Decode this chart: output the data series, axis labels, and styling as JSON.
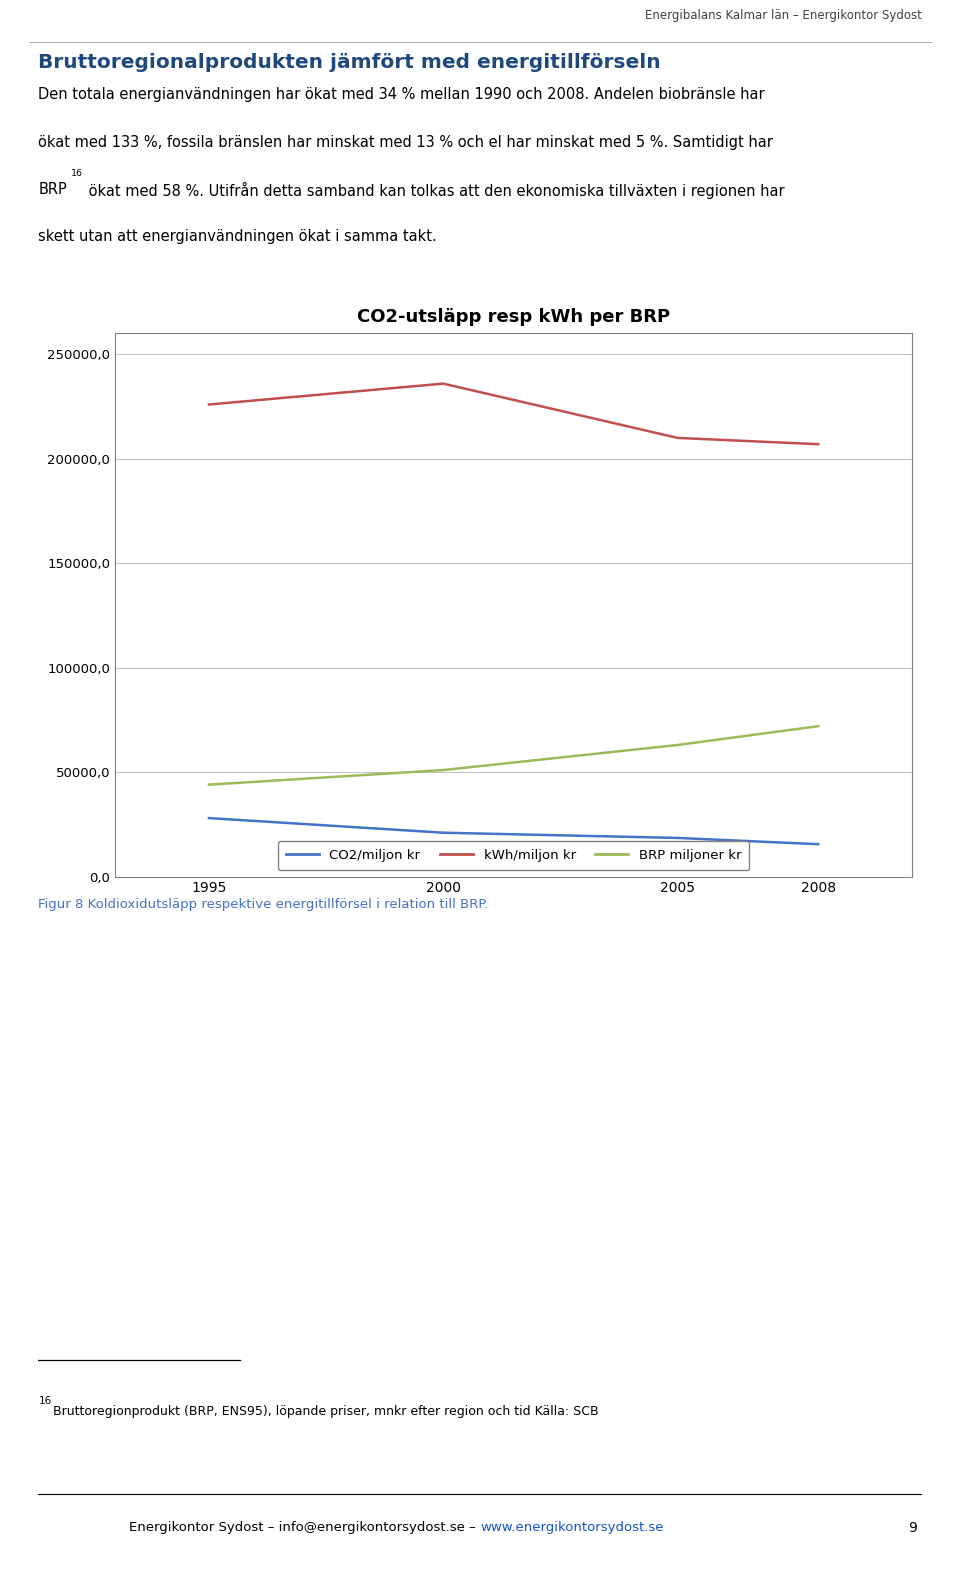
{
  "page_header": "Energibalans Kalmar län – Energikontor Sydost",
  "section_title": "Bruttoregionalprodukten jämfört med energitillförseln",
  "body_para1": "Den totala energianvändningen har ökat med 34 % mellan 1990 och 2008. Andelen biobränsle har ökat med 133 %, fossila bränslen har minskat med 13 % och el har minskat med 5 %. Samtidigt har BRP",
  "sup16": "16",
  "body_para2": " ökat med 58 %. Utifrån detta samband kan tolkas att den ekonomiska tillväxten i regionen har skett utan att energianvändningen ökat i samma takt.",
  "chart_title": "CO2-utsläpp resp kWh per BRP",
  "years": [
    1995,
    2000,
    2005,
    2008
  ],
  "co2_per_miljon": [
    28000,
    21000,
    18500,
    15500
  ],
  "kwh_per_miljon": [
    226000,
    236000,
    210000,
    207000
  ],
  "brp_miljoner": [
    44000,
    51000,
    63000,
    72000
  ],
  "co2_color": "#4472C4",
  "kwh_color": "#C0504D",
  "brp_color": "#9BBB59",
  "legend_labels": [
    "CO2/miljon kr",
    "kWh/miljon kr",
    "BRP miljoner kr"
  ],
  "yticks": [
    0,
    50000,
    100000,
    150000,
    200000,
    250000
  ],
  "ytick_labels": [
    "0,0",
    "50000,0",
    "100000,0",
    "150000,0",
    "200000,0",
    "250000,0"
  ],
  "figure_caption": "Figur 8 Koldioxidutsläpp respektive energitillförsel i relation till BRP.",
  "footnote_num": "16",
  "footnote_text": " Bruttoregionprodukt (BRP, ENS95), löpande priser, mnkr efter region och tid Källa: SCB",
  "footer_plain": "Energikontor Sydost – info@energikontorsydost.se – ",
  "footer_link": "www.energikontorsydost.se",
  "page_number": "9",
  "bg": "#ffffff",
  "section_title_color": "#1F497D",
  "caption_color": "#4472C4",
  "grid_color": "#C0C0C0",
  "border_color": "#808080"
}
